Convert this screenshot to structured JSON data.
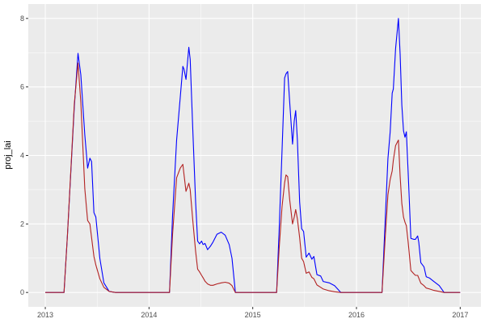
{
  "chart_data": {
    "type": "line",
    "title": "",
    "xlabel": "",
    "ylabel": "proj_lai",
    "x_axis_type": "date",
    "xlim": [
      "2012-11-02",
      "2017-03-15"
    ],
    "ylim": [
      -0.42,
      8.42
    ],
    "x_ticks": [
      "2013",
      "2014",
      "2015",
      "2016",
      "2017"
    ],
    "y_ticks": [
      0,
      2,
      4,
      6,
      8
    ],
    "grid": true,
    "legend": "none",
    "panel_background": "#EBEBEB",
    "x": [
      "2013-01-01",
      "2013-03-08",
      "2013-03-20",
      "2013-04-13",
      "2013-04-26",
      "2013-05-06",
      "2013-05-20",
      "2013-05-30",
      "2013-06-07",
      "2013-06-13",
      "2013-06-21",
      "2013-06-28",
      "2013-07-12",
      "2013-07-26",
      "2013-08-14",
      "2013-09-05",
      "2014-03-14",
      "2014-03-25",
      "2014-04-08",
      "2014-04-21",
      "2014-04-30",
      "2014-05-04",
      "2014-05-11",
      "2014-05-21",
      "2014-05-26",
      "2014-06-04",
      "2014-06-14",
      "2014-06-21",
      "2014-06-28",
      "2014-07-05",
      "2014-07-10",
      "2014-07-17",
      "2014-07-26",
      "2014-08-05",
      "2014-08-14",
      "2014-08-28",
      "2014-09-12",
      "2014-09-26",
      "2014-10-10",
      "2014-10-20",
      "2014-11-01",
      "2015-03-26",
      "2015-04-04",
      "2015-04-14",
      "2015-04-23",
      "2015-04-28",
      "2015-05-04",
      "2015-05-11",
      "2015-05-21",
      "2015-05-27",
      "2015-06-01",
      "2015-06-07",
      "2015-06-15",
      "2015-06-22",
      "2015-06-29",
      "2015-07-08",
      "2015-07-18",
      "2015-07-28",
      "2015-08-04",
      "2015-08-15",
      "2015-08-28",
      "2015-09-06",
      "2015-09-27",
      "2015-10-16",
      "2015-11-07",
      "2016-03-31",
      "2016-04-12",
      "2016-04-21",
      "2016-04-29",
      "2016-05-06",
      "2016-05-10",
      "2016-05-18",
      "2016-05-28",
      "2016-06-03",
      "2016-06-09",
      "2016-06-15",
      "2016-06-20",
      "2016-06-25",
      "2016-07-01",
      "2016-07-11",
      "2016-07-21",
      "2016-07-27",
      "2016-08-04",
      "2016-08-08",
      "2016-08-15",
      "2016-08-26",
      "2016-09-03",
      "2016-09-15",
      "2016-09-30",
      "2016-10-19",
      "2016-11-05",
      "2017-01-01"
    ],
    "series": [
      {
        "color": "#0000FF",
        "values": [
          0,
          0,
          1.7,
          5.4,
          6.98,
          6.35,
          4.6,
          3.63,
          3.92,
          3.82,
          2.33,
          2.2,
          1.0,
          0.28,
          0.03,
          0,
          0,
          2.25,
          4.45,
          5.7,
          6.6,
          6.52,
          6.22,
          7.16,
          6.8,
          4.76,
          2.64,
          1.5,
          1.42,
          1.5,
          1.4,
          1.43,
          1.25,
          1.35,
          1.47,
          1.7,
          1.76,
          1.67,
          1.4,
          1.0,
          0,
          0,
          1.86,
          4.13,
          6.26,
          6.38,
          6.45,
          5.55,
          4.33,
          5.0,
          5.31,
          4.45,
          2.64,
          1.86,
          1.78,
          1.03,
          1.15,
          0.97,
          1.05,
          0.52,
          0.48,
          0.32,
          0.28,
          0.2,
          0,
          0,
          2.25,
          3.9,
          4.69,
          5.82,
          5.94,
          7.12,
          8.0,
          6.96,
          5.47,
          4.72,
          4.53,
          4.69,
          3.58,
          1.58,
          1.55,
          1.55,
          1.65,
          1.46,
          0.87,
          0.75,
          0.46,
          0.42,
          0.32,
          0.2,
          0,
          0
        ]
      },
      {
        "color": "#B22222",
        "values": [
          0,
          0,
          1.7,
          5.5,
          6.7,
          5.55,
          3.03,
          2.1,
          2.0,
          1.6,
          1.05,
          0.8,
          0.4,
          0.15,
          0.03,
          0,
          0,
          1.7,
          3.35,
          3.63,
          3.74,
          3.45,
          2.95,
          3.19,
          3.0,
          2.1,
          1.2,
          0.68,
          0.6,
          0.5,
          0.43,
          0.33,
          0.25,
          0.21,
          0.21,
          0.25,
          0.28,
          0.3,
          0.27,
          0.2,
          0,
          0,
          1.3,
          2.5,
          3.2,
          3.43,
          3.38,
          2.7,
          2.0,
          2.2,
          2.42,
          2.15,
          1.6,
          1.0,
          0.9,
          0.56,
          0.6,
          0.44,
          0.4,
          0.22,
          0.15,
          0.1,
          0.05,
          0.02,
          0,
          0,
          1.7,
          2.85,
          3.3,
          3.55,
          3.86,
          4.29,
          4.45,
          3.4,
          2.6,
          2.2,
          2.05,
          1.95,
          1.5,
          0.64,
          0.55,
          0.5,
          0.5,
          0.42,
          0.27,
          0.2,
          0.13,
          0.1,
          0.06,
          0.03,
          0,
          0
        ]
      }
    ]
  }
}
